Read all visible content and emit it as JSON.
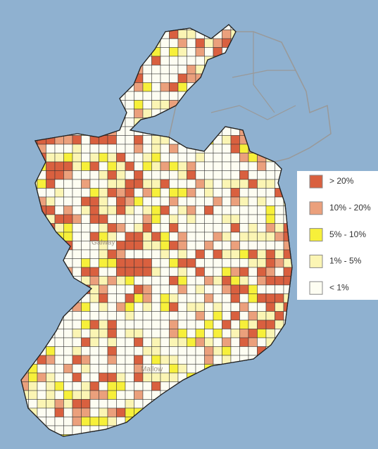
{
  "map": {
    "places": [
      "Galway",
      "Mallow"
    ],
    "legend": {
      "items": [
        {
          "label": "> 20%",
          "color": "#d9603f"
        },
        {
          "label": "10% - 20%",
          "color": "#eba07c"
        },
        {
          "label": "5% - 10%",
          "color": "#f7f03a"
        },
        {
          "label": "1% - 5%",
          "color": "#fbf5b4"
        },
        {
          "label": "< 1%",
          "color": "#fdfdf2"
        }
      ]
    }
  }
}
